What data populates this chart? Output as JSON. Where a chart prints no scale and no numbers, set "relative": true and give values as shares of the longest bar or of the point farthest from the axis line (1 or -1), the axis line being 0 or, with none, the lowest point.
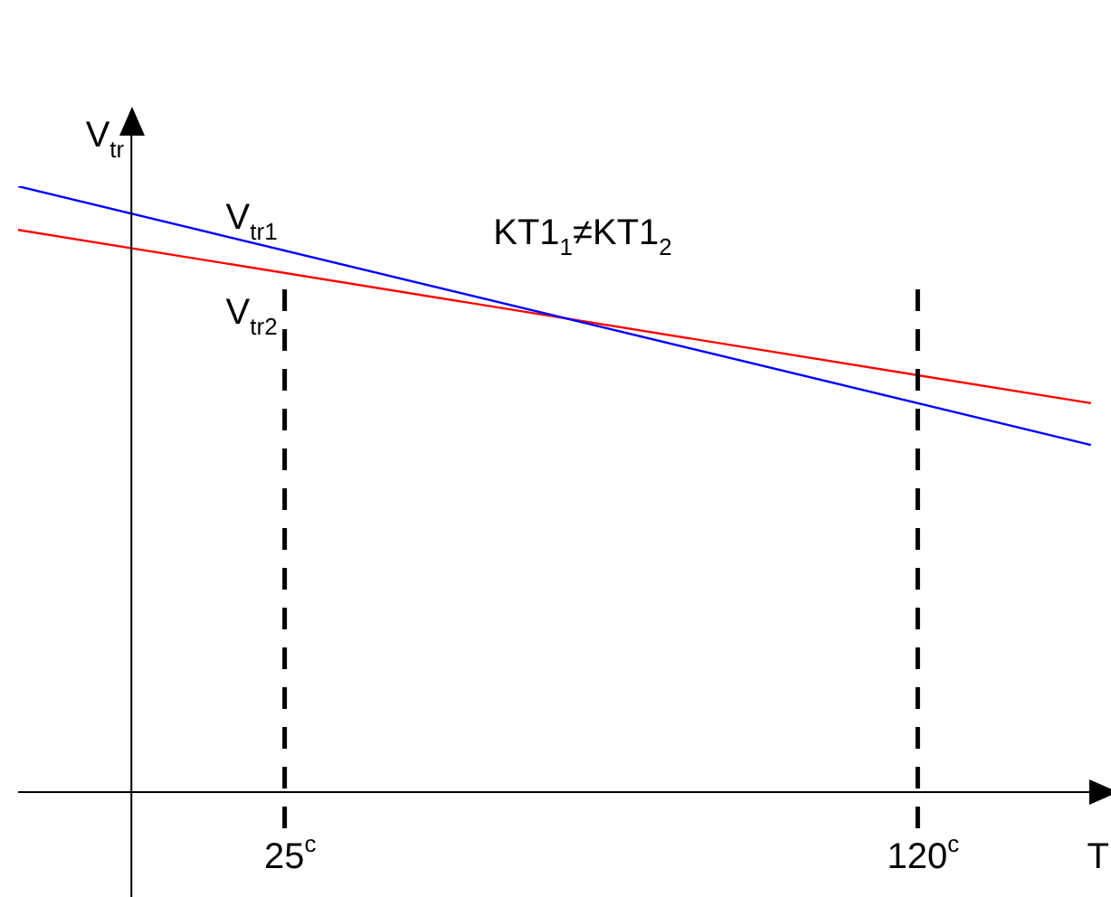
{
  "chart_data": {
    "type": "line",
    "relative": true,
    "xlabel": "T",
    "ylabel": "V$_{tr}$",
    "x": [
      -15,
      146
    ],
    "xlim": [
      -15,
      149
    ],
    "xticks": [
      {
        "value": 25,
        "label": "25$^{c}$"
      },
      {
        "value": 120,
        "label": "120$^{c}$"
      }
    ],
    "series": [
      {
        "name": "V$_{tr1}$",
        "color": "#0000ff",
        "values": [
          1,
          0.573
        ]
      },
      {
        "name": "V$_{tr2}$",
        "color": "#ff0000",
        "values": [
          0.928,
          0.642
        ]
      }
    ],
    "ref_lines": [
      {
        "axis": "x",
        "value": 25,
        "label": null,
        "line_style": "dashed",
        "color": "#000000"
      },
      {
        "axis": "x",
        "value": 120,
        "label": null,
        "line_style": "dashed",
        "color": "#000000"
      },
      {
        "axis": "x",
        "value": 2,
        "label": null,
        "line_style": "solid",
        "color": "#000000"
      }
    ],
    "annotations": [
      "KT1$_{1}$≠KT1$_{2}$"
    ],
    "grid": false,
    "legend": false,
    "marker": "none",
    "line_style": "solid",
    "tick_labels": "x"
  }
}
